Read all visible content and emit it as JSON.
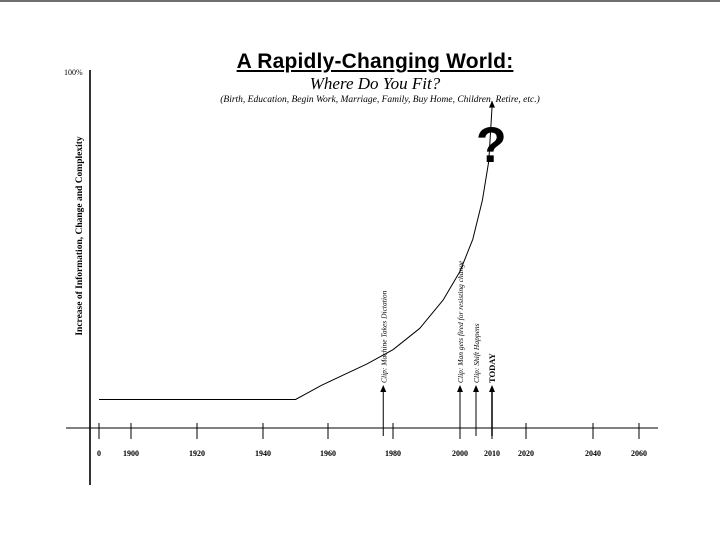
{
  "chart_data": {
    "type": "line",
    "title": "A Rapidly-Changing World:",
    "subtitle": "Where Do You Fit?",
    "subnote": "(Birth, Education, Begin Work, Marriage, Family, Buy Home, Children, Retire, etc.)",
    "ylabel": "Increase of Information, Change and Complexity",
    "ymax_label": "100%",
    "ylim": [
      0,
      100
    ],
    "x_ticks": [
      {
        "x": 0,
        "label": "0"
      },
      {
        "x": 1900,
        "label": "1900"
      },
      {
        "x": 1920,
        "label": "1920"
      },
      {
        "x": 1940,
        "label": "1940"
      },
      {
        "x": 1960,
        "label": "1960"
      },
      {
        "x": 1980,
        "label": "1980"
      },
      {
        "x": 2000,
        "label": "2000"
      },
      {
        "x": 2010,
        "label": "2010"
      },
      {
        "x": 2020,
        "label": "2020"
      },
      {
        "x": 2040,
        "label": "2040"
      },
      {
        "x": 2060,
        "label": "2060"
      }
    ],
    "series": [
      {
        "x": [
          1890,
          1950,
          1953,
          1958,
          1965,
          1972,
          1980,
          1988,
          1995,
          2000,
          2004,
          2007,
          2009,
          2010
        ],
        "y": [
          8,
          8,
          9.5,
          12,
          15,
          18,
          22,
          28,
          36,
          44,
          53,
          64,
          75,
          90
        ]
      }
    ],
    "annotations": [
      {
        "x": 1977,
        "label": "Clip:  Machine Takes Dictation",
        "bold": false
      },
      {
        "x": 2000,
        "label": "Clip:  Man gets fired for resisting change",
        "bold": false
      },
      {
        "x": 2005,
        "label": "Clip:  Shift Happens",
        "bold": false
      },
      {
        "x": 2010,
        "label": "TODAY",
        "bold": true
      }
    ],
    "callout": "?",
    "grid": false
  }
}
